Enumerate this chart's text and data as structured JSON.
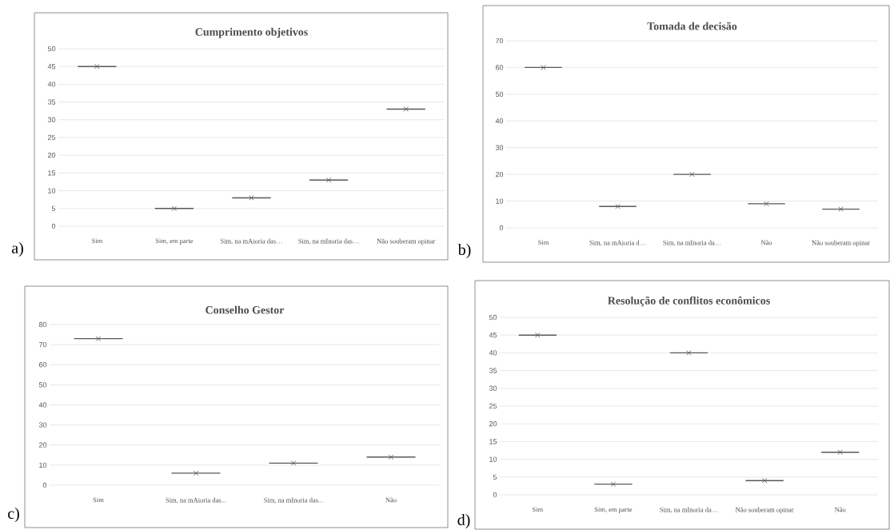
{
  "chart_data": [
    {
      "type": "box",
      "title": "Cumprimento objetivos",
      "categories": [
        "Sim",
        "Sim, em parte",
        "Sim, na mAioria das…",
        "Sim, na mInoria das…",
        "Não souberam opinar"
      ],
      "boxes": [
        {
          "low": 45,
          "q1": 45,
          "median": 45,
          "q3": 45,
          "high": 45,
          "mean": 45
        },
        {
          "low": 5,
          "q1": 5,
          "median": 5,
          "q3": 5,
          "high": 5,
          "mean": 5
        },
        {
          "low": 8,
          "q1": 8,
          "median": 8,
          "q3": 8,
          "high": 8,
          "mean": 8
        },
        {
          "low": 13,
          "q1": 13,
          "median": 13,
          "q3": 13,
          "high": 13,
          "mean": 13
        },
        {
          "low": 33,
          "q1": 33,
          "median": 33,
          "q3": 33,
          "high": 33,
          "mean": 33
        }
      ],
      "color": "#595959",
      "ylim": [
        0,
        50
      ],
      "yticks": [
        0,
        5,
        10,
        15,
        20,
        25,
        30,
        35,
        40,
        45,
        50
      ],
      "grid": "y",
      "marker": "cross",
      "annotations": [
        "a)"
      ]
    },
    {
      "type": "box",
      "title": "Tomada de decisão",
      "categories": [
        "Sim",
        "Sim, na mAioria d…",
        "Sim, na mInoria da…",
        "Não",
        "Não souberam opinar"
      ],
      "boxes": [
        {
          "low": 60,
          "q1": 60,
          "median": 60,
          "q3": 60,
          "high": 60,
          "mean": 60
        },
        {
          "low": 8,
          "q1": 8,
          "median": 8,
          "q3": 8,
          "high": 8,
          "mean": 8
        },
        {
          "low": 20,
          "q1": 20,
          "median": 20,
          "q3": 20,
          "high": 20,
          "mean": 20
        },
        {
          "low": 9,
          "q1": 9,
          "median": 9,
          "q3": 9,
          "high": 9,
          "mean": 9
        },
        {
          "low": 7,
          "q1": 7,
          "median": 7,
          "q3": 7,
          "high": 7,
          "mean": 7
        }
      ],
      "color": "#595959",
      "ylim": [
        0,
        70
      ],
      "yticks": [
        0,
        10,
        20,
        30,
        40,
        50,
        60,
        70
      ],
      "grid": "y",
      "marker": "cross",
      "annotations": [
        "b)"
      ]
    },
    {
      "type": "box",
      "title": "Conselho Gestor",
      "categories": [
        "Sim",
        "Sim, na mAioria das...",
        "Sim, na mInoria das...",
        "Não"
      ],
      "boxes": [
        {
          "low": 73,
          "q1": 73,
          "median": 73,
          "q3": 73,
          "high": 73,
          "mean": 73
        },
        {
          "low": 6,
          "q1": 6,
          "median": 6,
          "q3": 6,
          "high": 6,
          "mean": 6
        },
        {
          "low": 11,
          "q1": 11,
          "median": 11,
          "q3": 11,
          "high": 11,
          "mean": 11
        },
        {
          "low": 14,
          "q1": 14,
          "median": 14,
          "q3": 14,
          "high": 14,
          "mean": 14
        }
      ],
      "color": "#595959",
      "ylim": [
        0,
        80
      ],
      "yticks": [
        0,
        10,
        20,
        30,
        40,
        50,
        60,
        70,
        80
      ],
      "grid": "y",
      "marker": "cross",
      "annotations": [
        "c)"
      ]
    },
    {
      "type": "box",
      "title": "Resolução de conflitos econômicos",
      "categories": [
        "Sim",
        "Sim, em parte",
        "Sim, na mInoria da…",
        "Não souberam opinar",
        "Não"
      ],
      "boxes": [
        {
          "low": 45,
          "q1": 45,
          "median": 45,
          "q3": 45,
          "high": 45,
          "mean": 45
        },
        {
          "low": 3,
          "q1": 3,
          "median": 3,
          "q3": 3,
          "high": 3,
          "mean": 3
        },
        {
          "low": 40,
          "q1": 40,
          "median": 40,
          "q3": 40,
          "high": 40,
          "mean": 40
        },
        {
          "low": 4,
          "q1": 4,
          "median": 4,
          "q3": 4,
          "high": 4,
          "mean": 4
        },
        {
          "low": 12,
          "q1": 12,
          "median": 12,
          "q3": 12,
          "high": 12,
          "mean": 12
        }
      ],
      "color": "#595959",
      "ylim": [
        0,
        50
      ],
      "yticks": [
        0,
        5,
        10,
        15,
        20,
        25,
        30,
        35,
        40,
        45,
        50
      ],
      "grid": "y",
      "marker": "cross",
      "annotations": [
        "d)"
      ]
    }
  ]
}
